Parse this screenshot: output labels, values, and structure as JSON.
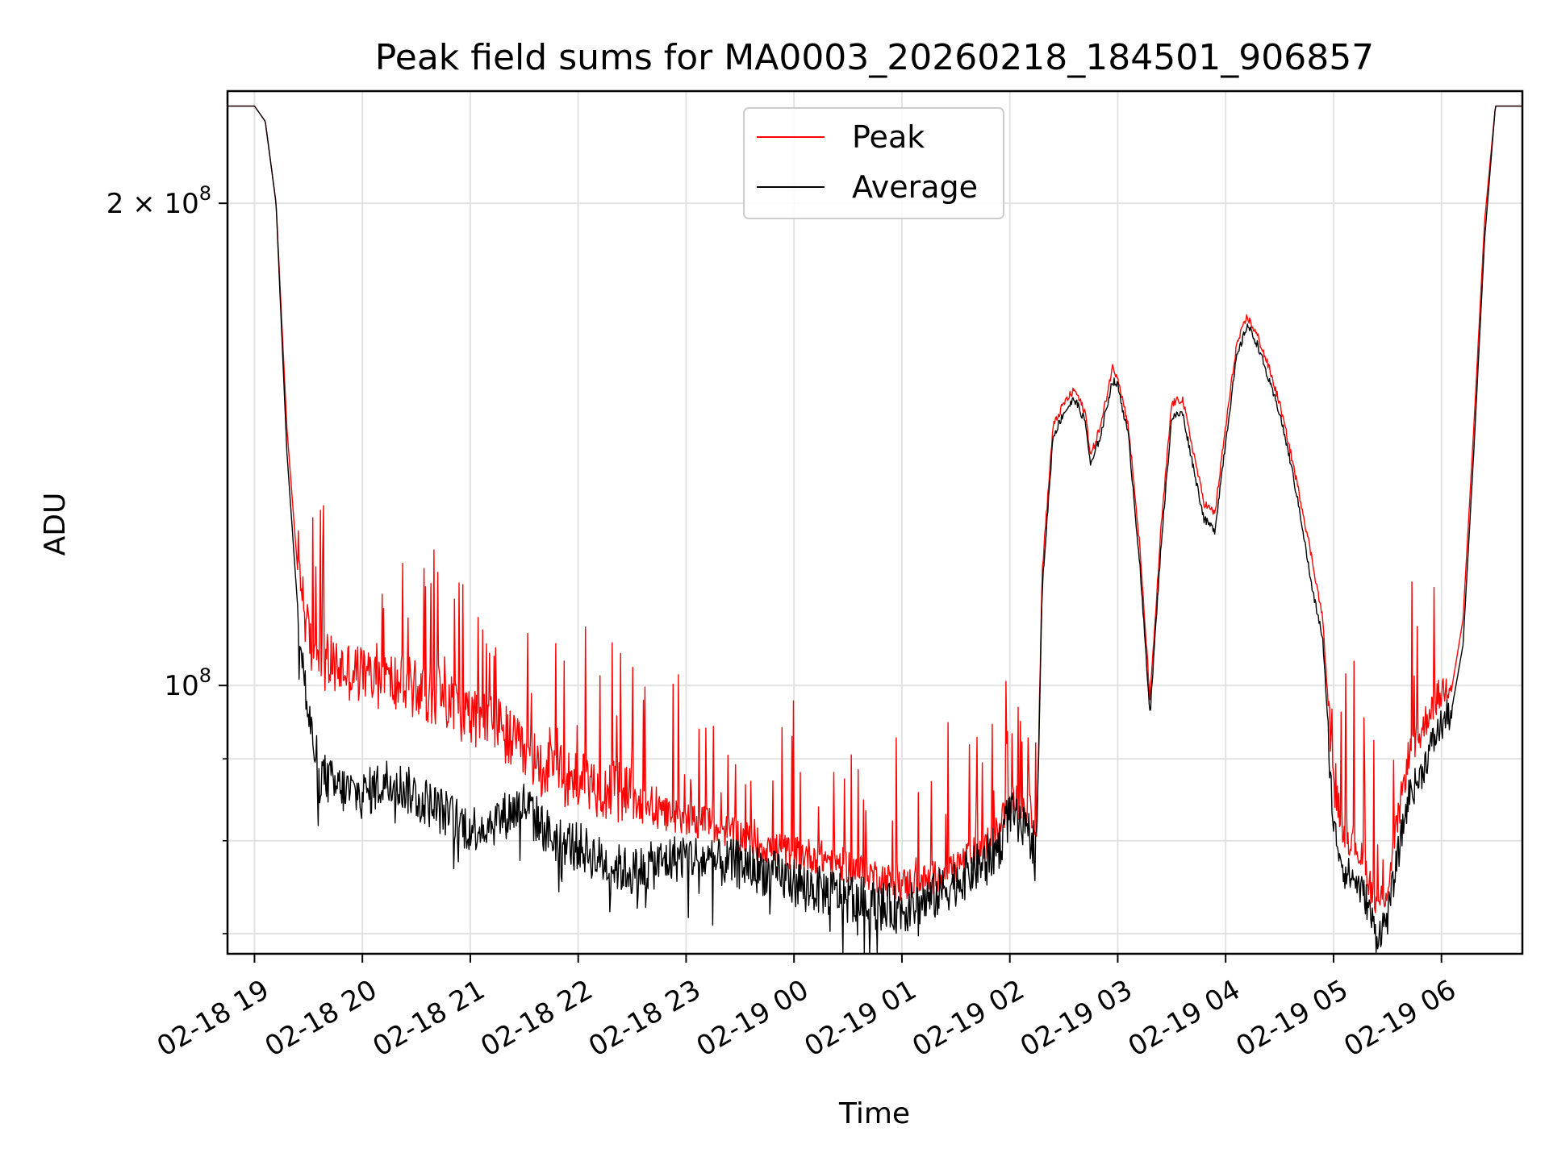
{
  "chart_data": {
    "type": "line",
    "title": "Peak field sums for MA0003_20260218_184501_906857",
    "xlabel": "Time",
    "ylabel": "ADU",
    "yscale": "log",
    "ylim": [
      68000000,
      235000000
    ],
    "xlim_hours": [
      -0.25,
      11.75
    ],
    "x_unit": "hours since 02-18 19:00",
    "grid": true,
    "legend_location": "upper center",
    "x_ticks": [
      {
        "value": 0,
        "label": "02-18 19"
      },
      {
        "value": 1,
        "label": "02-18 20"
      },
      {
        "value": 2,
        "label": "02-18 21"
      },
      {
        "value": 3,
        "label": "02-18 22"
      },
      {
        "value": 4,
        "label": "02-18 23"
      },
      {
        "value": 5,
        "label": "02-19 00"
      },
      {
        "value": 6,
        "label": "02-19 01"
      },
      {
        "value": 7,
        "label": "02-19 02"
      },
      {
        "value": 8,
        "label": "02-19 03"
      },
      {
        "value": 9,
        "label": "02-19 04"
      },
      {
        "value": 10,
        "label": "02-19 05"
      },
      {
        "value": 11,
        "label": "02-19 06"
      }
    ],
    "y_major_ticks": [
      {
        "value": 100000000,
        "base": "10",
        "exp": "8",
        "coef": ""
      },
      {
        "value": 200000000,
        "base": "10",
        "exp": "8",
        "coef": "2 × "
      }
    ],
    "y_minor_ticks": [
      70000000,
      80000000,
      90000000,
      300000000
    ],
    "series": [
      {
        "name": "Peak",
        "color": "#ff0000",
        "x": [
          -0.25,
          0.0,
          0.1,
          0.2,
          0.3,
          0.4,
          0.5,
          0.6,
          0.75,
          1.0,
          1.25,
          1.5,
          1.75,
          2.0,
          2.25,
          2.5,
          2.75,
          3.0,
          3.25,
          3.5,
          3.75,
          4.0,
          4.25,
          4.5,
          4.75,
          5.0,
          5.25,
          5.5,
          5.75,
          6.0,
          6.25,
          6.5,
          6.75,
          6.9,
          7.0,
          7.1,
          7.2,
          7.25,
          7.3,
          7.4,
          7.5,
          7.6,
          7.7,
          7.75,
          7.85,
          7.95,
          8.0,
          8.1,
          8.2,
          8.3,
          8.4,
          8.5,
          8.6,
          8.7,
          8.8,
          8.9,
          9.0,
          9.1,
          9.2,
          9.3,
          9.4,
          9.5,
          9.6,
          9.7,
          9.8,
          9.9,
          10.0,
          10.1,
          10.2,
          10.3,
          10.4,
          10.5,
          10.6,
          10.7,
          10.8,
          10.9,
          11.0,
          11.1,
          11.2,
          11.3,
          11.4,
          11.5,
          11.75
        ],
        "y": [
          230000000,
          230000000,
          225000000,
          200000000,
          145000000,
          118000000,
          104000000,
          101000000,
          100000000,
          99000000,
          98000000,
          97000000,
          96000000,
          93000000,
          92000000,
          88000000,
          86000000,
          85000000,
          84000000,
          83000000,
          82000000,
          81500000,
          80500000,
          79500000,
          78000000,
          77500000,
          77000000,
          76000000,
          75000000,
          74000000,
          74500000,
          76000000,
          78000000,
          80000000,
          84000000,
          83000000,
          82000000,
          81000000,
          118000000,
          145000000,
          150000000,
          153000000,
          148000000,
          139000000,
          146000000,
          158000000,
          156000000,
          145000000,
          123000000,
          98000000,
          125000000,
          150000000,
          151000000,
          140000000,
          130000000,
          128000000,
          145000000,
          163000000,
          170000000,
          165000000,
          158000000,
          150000000,
          140000000,
          130000000,
          120000000,
          110000000,
          86000000,
          80000000,
          79000000,
          76000000,
          72000000,
          74000000,
          82000000,
          90000000,
          92000000,
          96000000,
          98000000,
          100000000,
          110000000,
          145000000,
          195000000,
          230000000,
          230000000
        ]
      },
      {
        "name": "Average",
        "color": "#000000",
        "x": [
          -0.25,
          0.0,
          0.1,
          0.2,
          0.3,
          0.4,
          0.5,
          0.6,
          0.75,
          1.0,
          1.25,
          1.5,
          1.75,
          2.0,
          2.25,
          2.5,
          2.75,
          3.0,
          3.25,
          3.5,
          3.75,
          4.0,
          4.25,
          4.5,
          4.75,
          5.0,
          5.25,
          5.5,
          5.75,
          6.0,
          6.25,
          6.5,
          6.75,
          6.9,
          7.0,
          7.1,
          7.2,
          7.25,
          7.3,
          7.4,
          7.5,
          7.6,
          7.7,
          7.75,
          7.85,
          7.95,
          8.0,
          8.1,
          8.2,
          8.3,
          8.4,
          8.5,
          8.6,
          8.7,
          8.8,
          8.9,
          9.0,
          9.1,
          9.2,
          9.3,
          9.4,
          9.5,
          9.6,
          9.7,
          9.8,
          9.9,
          10.0,
          10.1,
          10.2,
          10.3,
          10.4,
          10.5,
          10.6,
          10.7,
          10.8,
          10.9,
          11.0,
          11.1,
          11.2,
          11.3,
          11.4,
          11.5,
          11.75
        ],
        "y": [
          230000000,
          230000000,
          225000000,
          200000000,
          140000000,
          112000000,
          96000000,
          89000000,
          87000000,
          86000000,
          88000000,
          86000000,
          84000000,
          82000000,
          83000000,
          85000000,
          81000000,
          80000000,
          78000000,
          77000000,
          78000000,
          79000000,
          78000000,
          78000000,
          77000000,
          76000000,
          75000000,
          74500000,
          73500000,
          73000000,
          74000000,
          76000000,
          78000000,
          80000000,
          84000000,
          82000000,
          81000000,
          80000000,
          115000000,
          143000000,
          148000000,
          151000000,
          146000000,
          137000000,
          144000000,
          155000000,
          154000000,
          143000000,
          120000000,
          96000000,
          122000000,
          147000000,
          148000000,
          137000000,
          127000000,
          125000000,
          142000000,
          160000000,
          168000000,
          163000000,
          155000000,
          148000000,
          138000000,
          127000000,
          115000000,
          107000000,
          82000000,
          77000000,
          76000000,
          74000000,
          70000000,
          72000000,
          79000000,
          86000000,
          88000000,
          92000000,
          95000000,
          97000000,
          106000000,
          140000000,
          190000000,
          230000000,
          230000000
        ]
      }
    ]
  }
}
